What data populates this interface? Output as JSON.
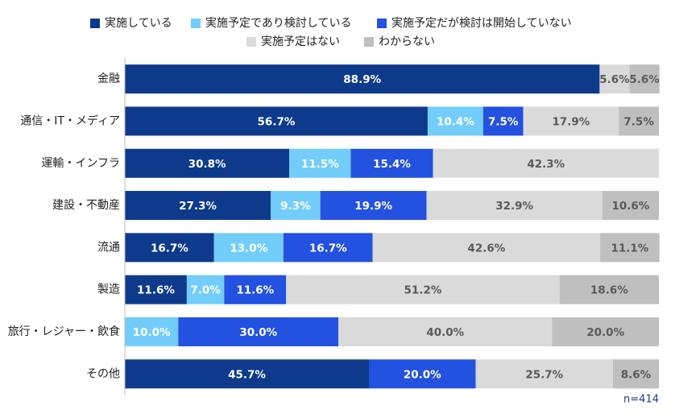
{
  "chart_data": {
    "type": "stacked_bar_horizontal",
    "categories": [
      "金融",
      "通信・IT・メディア",
      "運輸・インフラ",
      "建設・不動産",
      "流通",
      "製造",
      "旅行・レジャー・飲食",
      "その他"
    ],
    "series": [
      {
        "name": "実施している",
        "color": "#0e3a8c",
        "label_color": "#ffffff",
        "values": [
          88.9,
          56.7,
          30.8,
          27.3,
          16.7,
          11.6,
          0,
          45.7
        ],
        "value_labels": [
          "88.9%",
          "56.7%",
          "30.8%",
          "27.3%",
          "16.7%",
          "11.6%",
          null,
          "45.7%"
        ]
      },
      {
        "name": "実施予定であり検討している",
        "color": "#72cdfa",
        "label_color": "#ffffff",
        "values": [
          0,
          10.4,
          11.5,
          9.3,
          13.0,
          7.0,
          10.0,
          0
        ],
        "value_labels": [
          null,
          "10.4%",
          "11.5%",
          "9.3%",
          "13.0%",
          "7.0%",
          "10.0%",
          null
        ]
      },
      {
        "name": "実施予定だが検討は開始していない",
        "color": "#2351e0",
        "label_color": "#ffffff",
        "values": [
          0,
          7.5,
          15.4,
          19.9,
          16.7,
          11.6,
          30.0,
          20.0
        ],
        "value_labels": [
          null,
          "7.5%",
          "15.4%",
          "19.9%",
          "16.7%",
          "11.6%",
          "30.0%",
          "20.0%"
        ]
      },
      {
        "name": "実施予定はない",
        "color": "#dadada",
        "label_color": "#595959",
        "values": [
          5.6,
          17.9,
          42.3,
          32.9,
          42.6,
          51.2,
          40.0,
          25.7
        ],
        "value_labels": [
          "5.6%",
          "17.9%",
          "42.3%",
          "32.9%",
          "42.6%",
          "51.2%",
          "40.0%",
          "25.7%"
        ]
      },
      {
        "name": "わからない",
        "color": "#bfbfbf",
        "label_color": "#595959",
        "values": [
          5.6,
          7.5,
          0,
          10.6,
          11.1,
          18.6,
          20.0,
          8.6
        ],
        "value_labels": [
          "5.6%",
          "7.5%",
          null,
          "10.6%",
          "11.1%",
          "18.6%",
          "20.0%",
          "8.6%"
        ]
      }
    ],
    "xlim": [
      0,
      100
    ],
    "annotation": "n=414"
  }
}
